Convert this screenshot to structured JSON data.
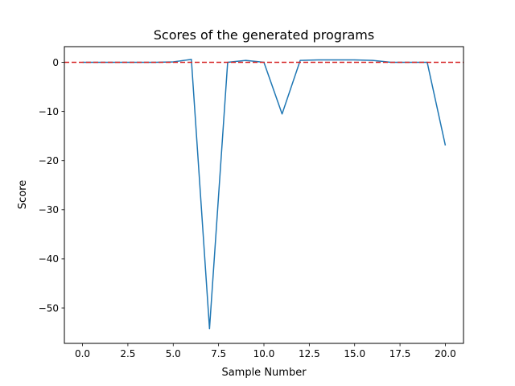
{
  "chart_data": {
    "type": "line",
    "title": "Scores of the generated programs",
    "xlabel": "Sample Number",
    "ylabel": "Score",
    "xlim": [
      -1.0,
      21.0
    ],
    "ylim": [
      -57.2,
      3.2
    ],
    "xticks": [
      0.0,
      2.5,
      5.0,
      7.5,
      10.0,
      12.5,
      15.0,
      17.5,
      20.0
    ],
    "xtick_labels": [
      "0.0",
      "2.5",
      "5.0",
      "7.5",
      "10.0",
      "12.5",
      "15.0",
      "17.5",
      "20.0"
    ],
    "yticks": [
      0,
      -10,
      -20,
      -30,
      -40,
      -50
    ],
    "ytick_labels": [
      "0",
      "−10",
      "−20",
      "−30",
      "−40",
      "−50"
    ],
    "grid": false,
    "series": [
      {
        "color": "#1f77b4",
        "x": [
          0,
          1,
          2,
          3,
          4,
          5,
          6,
          7,
          8,
          9,
          10,
          11,
          12,
          13,
          14,
          15,
          16,
          17,
          18,
          19,
          20
        ],
        "y": [
          0,
          0,
          0,
          0,
          0,
          0.1,
          0.6,
          -54.2,
          0,
          0.4,
          0,
          -10.5,
          0.4,
          0.5,
          0.5,
          0.5,
          0.4,
          0,
          0,
          0,
          -16.9
        ]
      }
    ],
    "reference_line": {
      "y": 0,
      "color": "#d62728",
      "style": "dashed"
    }
  }
}
